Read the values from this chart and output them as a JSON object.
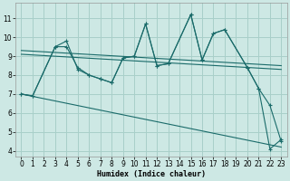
{
  "xlabel": "Humidex (Indice chaleur)",
  "xlim": [
    -0.5,
    23.5
  ],
  "ylim": [
    3.7,
    11.8
  ],
  "yticks": [
    4,
    5,
    6,
    7,
    8,
    9,
    10,
    11
  ],
  "xticks": [
    0,
    1,
    2,
    3,
    4,
    5,
    6,
    7,
    8,
    9,
    10,
    11,
    12,
    13,
    14,
    15,
    16,
    17,
    18,
    19,
    20,
    21,
    22,
    23
  ],
  "bg_color": "#cde8e4",
  "grid_color": "#a8cfc9",
  "line_color": "#1a6b6a",
  "line1_x": [
    0,
    1,
    3,
    4,
    5,
    6,
    7,
    8,
    9,
    10,
    11,
    12,
    13,
    15,
    16,
    17,
    18,
    20,
    21,
    22,
    23
  ],
  "line1_y": [
    7.0,
    6.9,
    9.5,
    9.5,
    8.4,
    8.0,
    7.8,
    7.6,
    8.9,
    9.0,
    10.7,
    8.5,
    8.6,
    11.2,
    8.8,
    10.2,
    10.4,
    8.4,
    7.3,
    6.4,
    4.5
  ],
  "line2_x": [
    0,
    1,
    3,
    4,
    5,
    6,
    7,
    8,
    9,
    10,
    11,
    12,
    13,
    15,
    16,
    17,
    18,
    20,
    21,
    22,
    23
  ],
  "line2_y": [
    7.0,
    6.9,
    9.5,
    9.8,
    8.3,
    8.0,
    7.8,
    7.6,
    8.9,
    9.0,
    10.7,
    8.5,
    8.6,
    11.2,
    8.8,
    10.2,
    10.4,
    8.4,
    7.3,
    4.1,
    4.6
  ],
  "trend1_x": [
    0,
    23
  ],
  "trend1_y": [
    9.3,
    8.5
  ],
  "trend2_x": [
    0,
    23
  ],
  "trend2_y": [
    9.1,
    8.3
  ],
  "trend3_x": [
    0,
    23
  ],
  "trend3_y": [
    7.0,
    4.2
  ]
}
